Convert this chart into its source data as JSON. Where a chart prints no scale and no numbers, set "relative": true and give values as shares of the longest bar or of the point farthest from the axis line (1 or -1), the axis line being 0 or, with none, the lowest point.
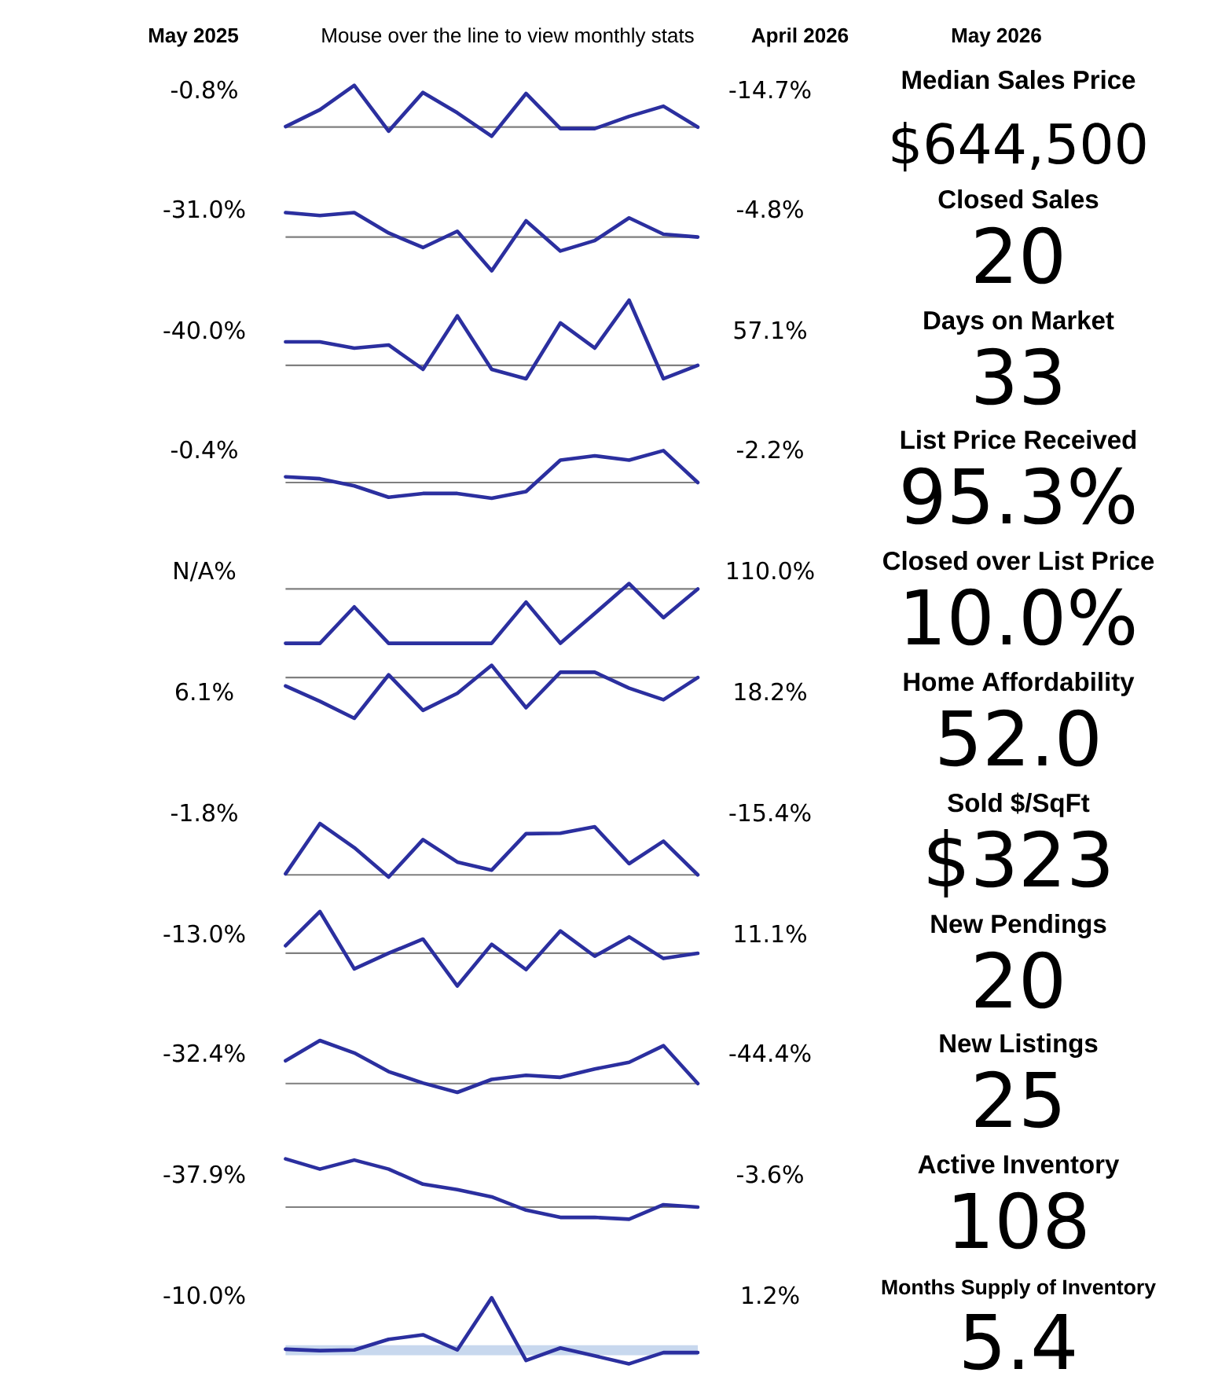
{
  "chart_data": [
    {
      "type": "other",
      "annotations": [
        "May 2025",
        "Mouse over the line to view monthly stats",
        "April 2026",
        "May 2026"
      ]
    },
    {
      "type": "line",
      "relative": true,
      "color": "#2b2f9f",
      "categories": [
        null,
        null,
        null,
        null,
        null,
        null,
        null,
        null,
        null,
        null,
        null,
        null,
        null
      ],
      "values": [
        0.19,
        0.52,
        1,
        0.1,
        0.86,
        0.46,
        0,
        0.84,
        0.15,
        0.15,
        0.39,
        0.59,
        0.18
      ],
      "ref_lines": [
        {
          "axis": "y",
          "value": 0.18,
          "color": "#7f7f7f"
        }
      ],
      "annotations": [
        "-0.8%",
        "-14.7%"
      ]
    },
    {
      "type": "other",
      "title": "Median Sales Price",
      "annotations": [
        "$644,500"
      ]
    },
    {
      "type": "line",
      "relative": true,
      "color": "#2b2f9f",
      "categories": [
        null,
        null,
        null,
        null,
        null,
        null,
        null,
        null,
        null,
        null,
        null,
        null,
        null
      ],
      "values": [
        1,
        0.95,
        1,
        0.65,
        0.4,
        0.68,
        0,
        0.86,
        0.34,
        0.52,
        0.91,
        0.63,
        0.58
      ],
      "ref_lines": [
        {
          "axis": "y",
          "value": 0.58,
          "color": "#7f7f7f"
        }
      ],
      "annotations": [
        "-31.0%",
        "-4.8%"
      ]
    },
    {
      "type": "other",
      "title": "Closed Sales",
      "annotations": [
        "20"
      ]
    },
    {
      "type": "line",
      "relative": true,
      "color": "#2b2f9f",
      "categories": [
        null,
        null,
        null,
        null,
        null,
        null,
        null,
        null,
        null,
        null,
        null,
        null,
        null
      ],
      "values": [
        0.47,
        0.47,
        0.39,
        0.43,
        0.12,
        0.8,
        0.12,
        0,
        0.71,
        0.39,
        1,
        0,
        0.17
      ],
      "ref_lines": [
        {
          "axis": "y",
          "value": 0.17,
          "color": "#7f7f7f"
        }
      ],
      "annotations": [
        "-40.0%",
        "57.1%"
      ]
    },
    {
      "type": "other",
      "title": "Days on Market",
      "annotations": [
        "33"
      ]
    },
    {
      "type": "line",
      "relative": true,
      "color": "#2b2f9f",
      "categories": [
        null,
        null,
        null,
        null,
        null,
        null,
        null,
        null,
        null,
        null,
        null,
        null,
        null
      ],
      "values": [
        0.45,
        0.41,
        0.26,
        0.02,
        0.1,
        0.1,
        0,
        0.14,
        0.8,
        0.89,
        0.8,
        1,
        0.33
      ],
      "ref_lines": [
        {
          "axis": "y",
          "value": 0.33,
          "color": "#7f7f7f"
        }
      ],
      "annotations": [
        "-0.4%",
        "-2.2%"
      ]
    },
    {
      "type": "other",
      "title": "List Price Received",
      "annotations": [
        "95.3%"
      ]
    },
    {
      "type": "line",
      "relative": true,
      "color": "#2b2f9f",
      "categories": [
        null,
        null,
        null,
        null,
        null,
        null,
        null,
        null,
        null,
        null,
        null,
        null,
        null
      ],
      "values": [
        0,
        0,
        0.61,
        0,
        0,
        0,
        0,
        0.69,
        0,
        0.5,
        1,
        0.43,
        0.91
      ],
      "ref_lines": [
        {
          "axis": "y",
          "value": 0.91,
          "color": "#7f7f7f"
        }
      ],
      "annotations": [
        "N/A%",
        "110.0%"
      ]
    },
    {
      "type": "other",
      "title": "Closed over List Price",
      "annotations": [
        "10.0%"
      ]
    },
    {
      "type": "line",
      "relative": true,
      "color": "#2b2f9f",
      "categories": [
        null,
        null,
        null,
        null,
        null,
        null,
        null,
        null,
        null,
        null,
        null,
        null,
        null
      ],
      "values": [
        0.61,
        0.32,
        0,
        0.82,
        0.15,
        0.47,
        1,
        0.2,
        0.87,
        0.87,
        0.57,
        0.35,
        0.77
      ],
      "ref_lines": [
        {
          "axis": "y",
          "value": 0.77,
          "color": "#7f7f7f"
        }
      ],
      "annotations": [
        "6.1%",
        "18.2%"
      ]
    },
    {
      "type": "other",
      "title": "Home Affordability",
      "annotations": [
        "52.0"
      ]
    },
    {
      "type": "line",
      "relative": true,
      "color": "#2b2f9f",
      "categories": [
        null,
        null,
        null,
        null,
        null,
        null,
        null,
        null,
        null,
        null,
        null,
        null,
        null
      ],
      "values": [
        0.06,
        1,
        0.55,
        0,
        0.7,
        0.28,
        0.13,
        0.81,
        0.82,
        0.94,
        0.25,
        0.67,
        0.04
      ],
      "ref_lines": [
        {
          "axis": "y",
          "value": 0.04,
          "color": "#7f7f7f"
        }
      ],
      "annotations": [
        "-1.8%",
        "-15.4%"
      ]
    },
    {
      "type": "other",
      "title": "Sold $/SqFt",
      "annotations": [
        "$323"
      ]
    },
    {
      "type": "line",
      "relative": true,
      "color": "#2b2f9f",
      "categories": [
        null,
        null,
        null,
        null,
        null,
        null,
        null,
        null,
        null,
        null,
        null,
        null,
        null
      ],
      "values": [
        0.54,
        1,
        0.23,
        0.44,
        0.63,
        0,
        0.56,
        0.22,
        0.74,
        0.4,
        0.66,
        0.37,
        0.44
      ],
      "ref_lines": [
        {
          "axis": "y",
          "value": 0.44,
          "color": "#7f7f7f"
        }
      ],
      "annotations": [
        "-13.0%",
        "11.1%"
      ]
    },
    {
      "type": "other",
      "title": "New Pendings",
      "annotations": [
        "20"
      ]
    },
    {
      "type": "line",
      "relative": true,
      "color": "#2b2f9f",
      "categories": [
        null,
        null,
        null,
        null,
        null,
        null,
        null,
        null,
        null,
        null,
        null,
        null,
        null
      ],
      "values": [
        0.61,
        1,
        0.76,
        0.4,
        0.18,
        0,
        0.25,
        0.33,
        0.29,
        0.45,
        0.58,
        0.9,
        0.17
      ],
      "ref_lines": [
        {
          "axis": "y",
          "value": 0.17,
          "color": "#7f7f7f"
        }
      ],
      "annotations": [
        "-32.4%",
        "-44.4%"
      ]
    },
    {
      "type": "other",
      "title": "New Listings",
      "annotations": [
        "25"
      ]
    },
    {
      "type": "line",
      "relative": true,
      "color": "#2b2f9f",
      "categories": [
        null,
        null,
        null,
        null,
        null,
        null,
        null,
        null,
        null,
        null,
        null,
        null,
        null
      ],
      "values": [
        1,
        0.83,
        0.98,
        0.83,
        0.58,
        0.49,
        0.37,
        0.15,
        0.03,
        0.03,
        0,
        0.24,
        0.2
      ],
      "ref_lines": [
        {
          "axis": "y",
          "value": 0.2,
          "color": "#7f7f7f"
        }
      ],
      "annotations": [
        "-37.9%",
        "-3.6%"
      ]
    },
    {
      "type": "other",
      "title": "Active Inventory",
      "annotations": [
        "108"
      ]
    },
    {
      "type": "line",
      "relative": true,
      "color": "#2b2f9f",
      "categories": [
        null,
        null,
        null,
        null,
        null,
        null,
        null,
        null,
        null,
        null,
        null,
        null,
        null
      ],
      "values": [
        0.22,
        0.2,
        0.21,
        0.37,
        0.44,
        0.21,
        1,
        0.05,
        0.24,
        0.12,
        0,
        0.17,
        0.17
      ],
      "bands": [
        {
          "axis": "y",
          "from": 0.13,
          "to": 0.28,
          "color": "#c8d8ee"
        }
      ],
      "annotations": [
        "-10.0%",
        "1.2%"
      ]
    },
    {
      "type": "other",
      "title": "Months Supply of Inventory",
      "annotations": [
        "5.4"
      ]
    }
  ]
}
